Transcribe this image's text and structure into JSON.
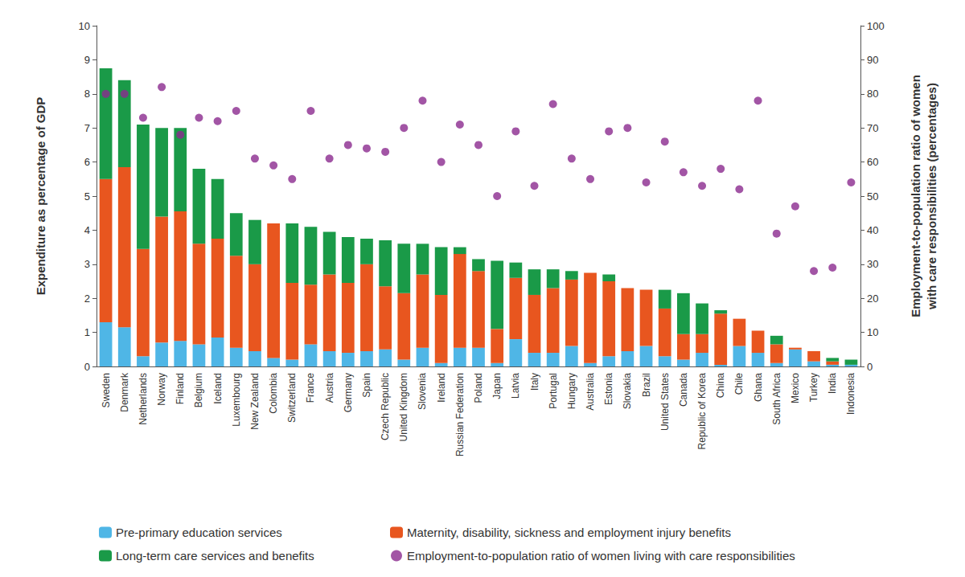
{
  "chart_data": {
    "type": "bar",
    "y_label": "Expenditure as percentage of GDP",
    "y2_label": "Employment-to-population ratio of women\nwith care responsibilities (percentages)",
    "categories": [
      "Sweden",
      "Denmark",
      "Netherlands",
      "Norway",
      "Finland",
      "Belgium",
      "Iceland",
      "Luxembourg",
      "New Zealand",
      "Colombia",
      "Switzerland",
      "France",
      "Austria",
      "Germany",
      "Spain",
      "Czech Republic",
      "United Kingdom",
      "Slovenia",
      "Ireland",
      "Russian Federation",
      "Poland",
      "Japan",
      "Latvia",
      "Italy",
      "Portugal",
      "Hungary",
      "Australia",
      "Estonia",
      "Slovakia",
      "Brazil",
      "United States",
      "Canada",
      "Republic of Korea",
      "China",
      "Chile",
      "Ghana",
      "South Africa",
      "Mexico",
      "Turkey",
      "India",
      "Indonesia"
    ],
    "series": [
      {
        "name": "Pre-primary education services",
        "type": "bar",
        "color": "#4fb6e6",
        "values": [
          1.3,
          1.15,
          0.3,
          0.7,
          0.75,
          0.65,
          0.85,
          0.55,
          0.45,
          0.25,
          0.2,
          0.65,
          0.45,
          0.4,
          0.45,
          0.5,
          0.2,
          0.55,
          0.1,
          0.55,
          0.55,
          0.1,
          0.8,
          0.4,
          0.4,
          0.6,
          0.1,
          0.3,
          0.45,
          0.6,
          0.3,
          0.2,
          0.4,
          0.05,
          0.6,
          0.4,
          0.1,
          0.5,
          0.15,
          0.05,
          0.05
        ]
      },
      {
        "name": "Maternity, disability, sickness and employment injury benefits",
        "type": "bar",
        "color": "#e8561f",
        "values": [
          4.2,
          4.7,
          3.15,
          3.7,
          3.8,
          2.95,
          2.9,
          2.7,
          2.55,
          3.95,
          2.25,
          1.75,
          2.25,
          2.05,
          2.55,
          1.85,
          1.95,
          2.15,
          2.0,
          2.75,
          2.25,
          1.0,
          1.8,
          1.7,
          1.9,
          1.95,
          2.65,
          2.2,
          1.85,
          1.65,
          1.4,
          0.75,
          0.55,
          1.5,
          0.8,
          0.65,
          0.55,
          0.05,
          0.3,
          0.1,
          0
        ]
      },
      {
        "name": "Long-term care services and benefits",
        "type": "bar",
        "color": "#1a9a48",
        "values": [
          3.25,
          2.55,
          3.65,
          2.6,
          2.45,
          2.2,
          1.75,
          1.25,
          1.3,
          0,
          1.75,
          1.7,
          1.25,
          1.35,
          0.75,
          1.35,
          1.45,
          0.9,
          1.4,
          0.2,
          0.35,
          2.0,
          0.45,
          0.75,
          0.55,
          0.25,
          0,
          0.2,
          0,
          0,
          0.55,
          1.2,
          0.9,
          0.1,
          0,
          0,
          0.25,
          0,
          0,
          0.1,
          0.15
        ]
      },
      {
        "name": "Employment-to-population ratio of women living with care responsibilities",
        "type": "scatter",
        "axis": "y2",
        "marker": "circle",
        "color": "#8b2a8e",
        "values": [
          80,
          80,
          73,
          82,
          68,
          73,
          72,
          75,
          61,
          59,
          55,
          75,
          61,
          65,
          64,
          63,
          70,
          78,
          60,
          71,
          65,
          50,
          69,
          53,
          77,
          61,
          55,
          69,
          70,
          54,
          66,
          57,
          53,
          58,
          52,
          78,
          39,
          47,
          28,
          29,
          54
        ]
      }
    ],
    "stacked": true,
    "ylim": [
      0,
      10
    ],
    "yticks": [
      0,
      1,
      2,
      3,
      4,
      5,
      6,
      7,
      8,
      9,
      10
    ],
    "y2lim": [
      0,
      100
    ],
    "y2ticks": [
      0,
      10,
      20,
      30,
      40,
      50,
      60,
      70,
      80,
      90,
      100
    ],
    "grid": false,
    "legend": "bottom"
  }
}
